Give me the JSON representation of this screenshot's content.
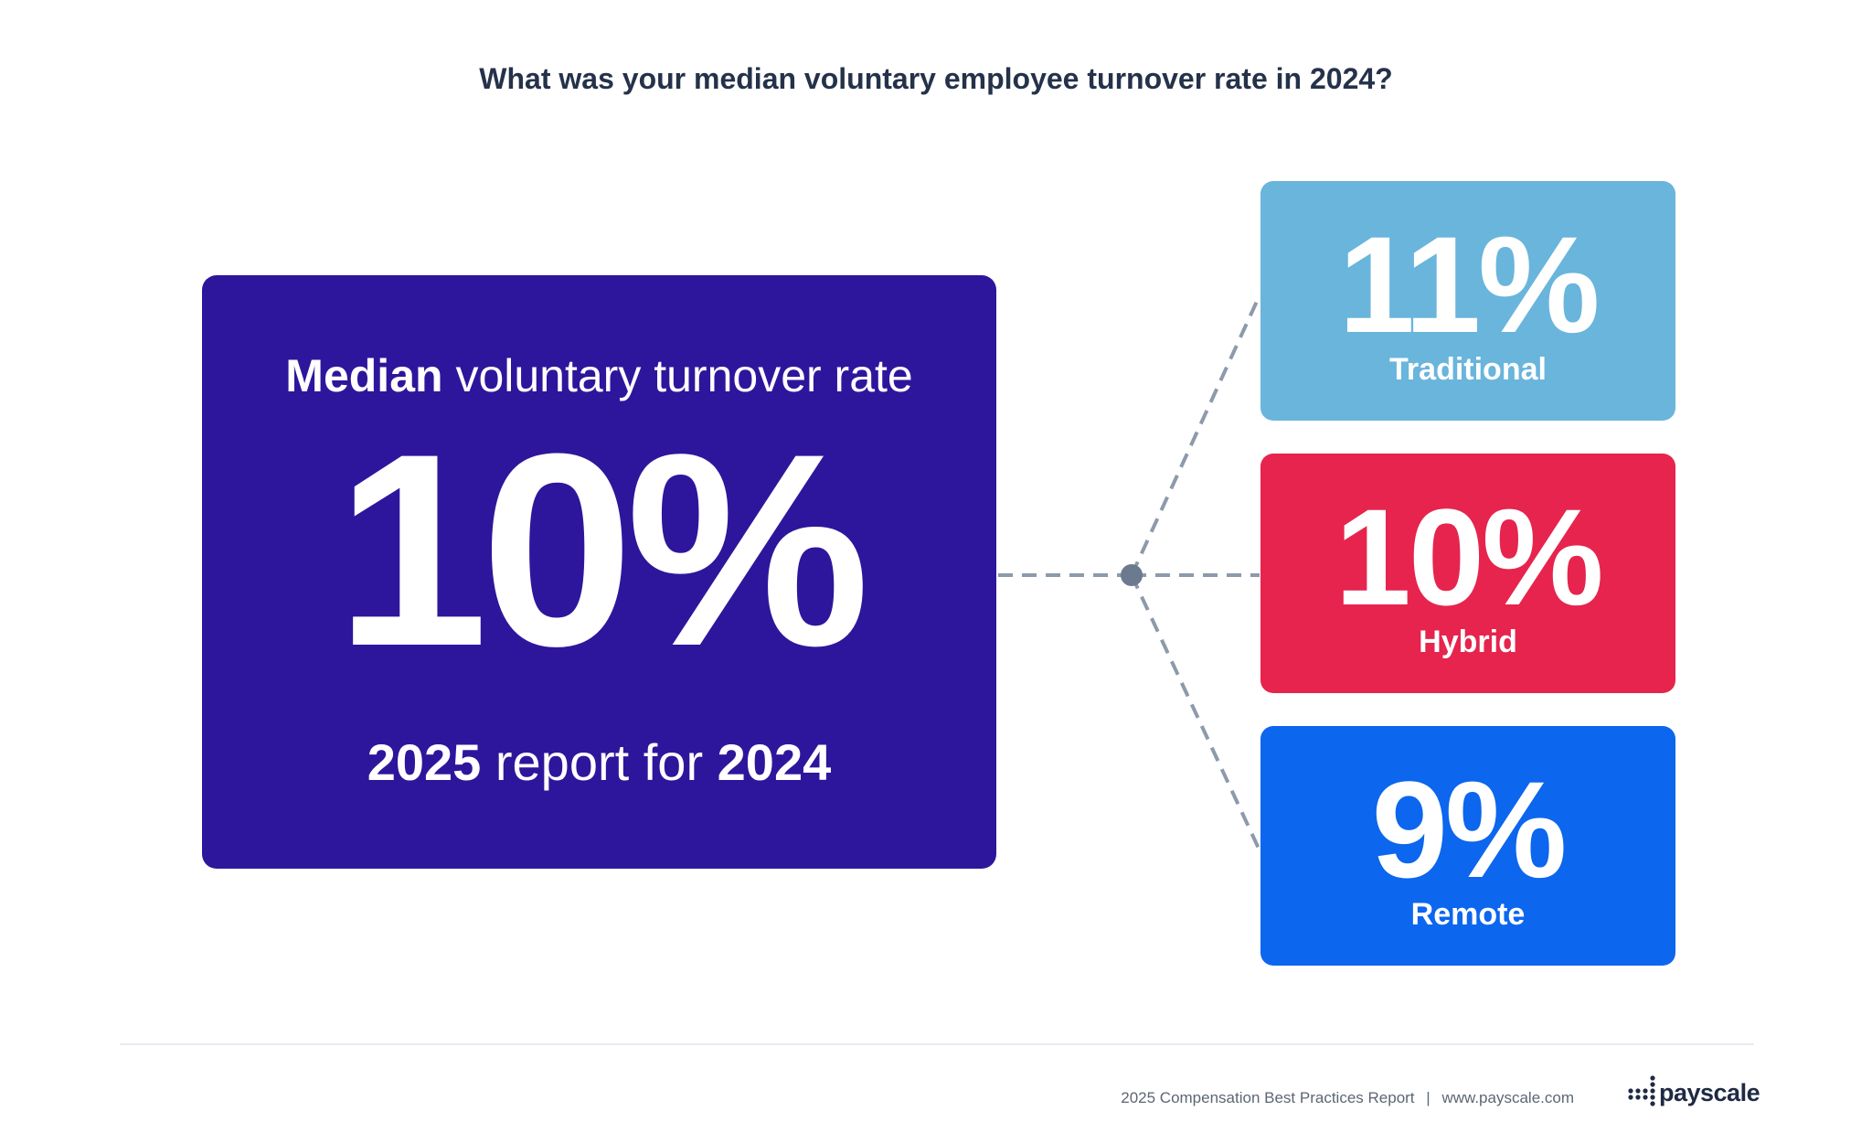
{
  "question": "What was your median voluntary employee turnover rate in 2024?",
  "main_card": {
    "heading_strong": "Median",
    "heading_rest": "voluntary turnover rate",
    "value": "10%",
    "footer_year1": "2025",
    "footer_mid": "report for",
    "footer_year2": "2024",
    "color": "#2e169c"
  },
  "breakdown": [
    {
      "value": "11%",
      "label": "Traditional",
      "color": "#69b5dc"
    },
    {
      "value": "10%",
      "label": "Hybrid",
      "color": "#e6244d"
    },
    {
      "value": "9%",
      "label": "Remote",
      "color": "#0c66ee"
    }
  ],
  "connector_color": "#8c9aab",
  "footer": {
    "report": "2025 Compensation Best Practices Report",
    "separator": "|",
    "url": "www.payscale.com",
    "logo_text": "payscale",
    "logo_icon": "payscale-dots-icon"
  }
}
